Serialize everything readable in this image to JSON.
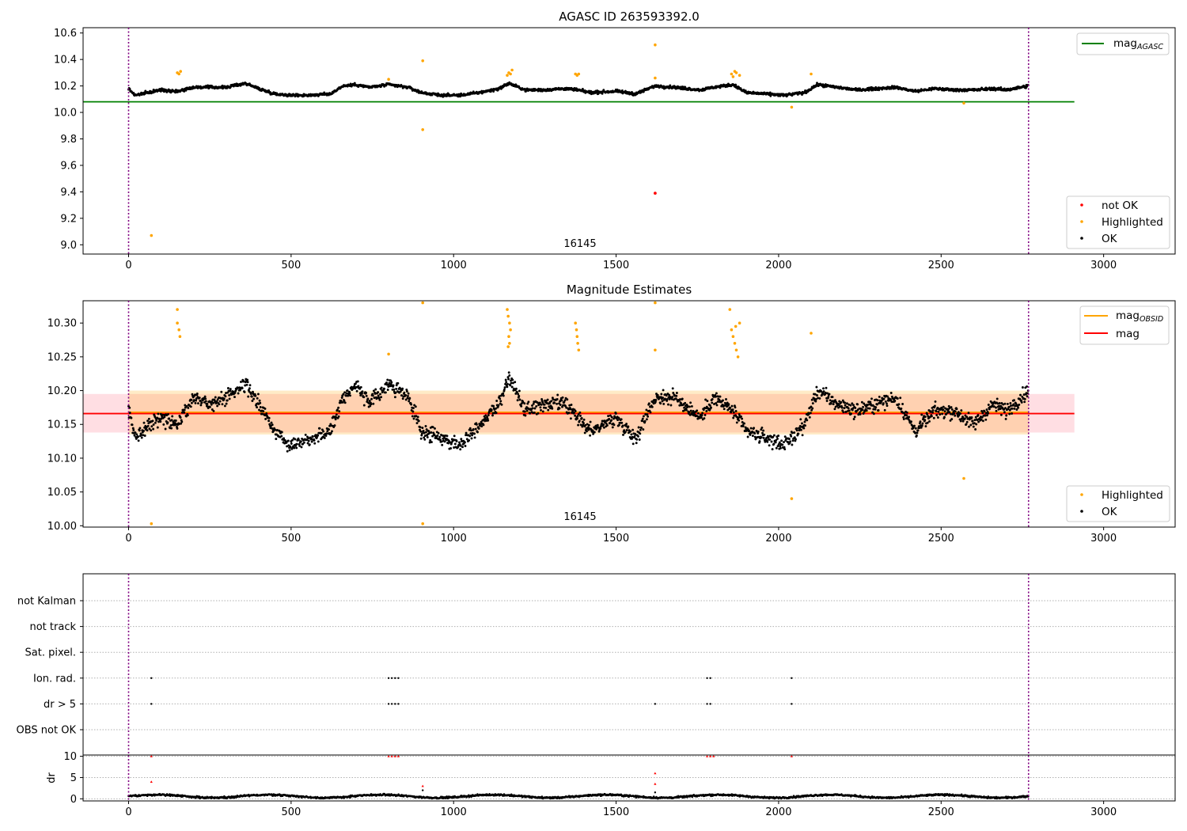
{
  "chart_data": [
    {
      "type": "scatter",
      "title": "AGASC ID 263593392.0",
      "annotation": "16145",
      "xticks": [
        "0",
        "500",
        "1000",
        "1500",
        "2000",
        "2500",
        "3000"
      ],
      "yticks": [
        "9.0",
        "9.2",
        "9.4",
        "9.6",
        "9.8",
        "10.0",
        "10.2",
        "10.4",
        "10.6"
      ],
      "xlim": [
        -140,
        3220
      ],
      "ylim": [
        8.93,
        10.64
      ],
      "vlines": [
        0,
        2769
      ],
      "hlines": [
        {
          "name": "mag_AGASC",
          "y": 10.08,
          "x": [
            -140,
            2910
          ],
          "color": "#008000"
        }
      ],
      "legend_lines": [
        {
          "label": "mag",
          "sub": "AGASC",
          "color": "#008000"
        }
      ],
      "legend_points": [
        {
          "label": "not OK",
          "color": "#ff0000"
        },
        {
          "label": "Highlighted",
          "color": "#ffa500"
        },
        {
          "label": "OK",
          "color": "#000000"
        }
      ],
      "series_ok": {
        "name": "OK",
        "color": "#000000",
        "x_range": [
          0,
          2769
        ],
        "segments": [
          [
            0,
            10.18
          ],
          [
            20,
            10.13
          ],
          [
            60,
            10.15
          ],
          [
            100,
            10.17
          ],
          [
            150,
            10.16
          ],
          [
            200,
            10.19
          ],
          [
            260,
            10.19
          ],
          [
            300,
            10.19
          ],
          [
            360,
            10.22
          ],
          [
            400,
            10.18
          ],
          [
            450,
            10.14
          ],
          [
            500,
            10.13
          ],
          [
            560,
            10.13
          ],
          [
            620,
            10.14
          ],
          [
            660,
            10.2
          ],
          [
            700,
            10.21
          ],
          [
            740,
            10.19
          ],
          [
            800,
            10.21
          ],
          [
            860,
            10.19
          ],
          [
            900,
            10.15
          ],
          [
            960,
            10.13
          ],
          [
            1020,
            10.13
          ],
          [
            1080,
            10.15
          ],
          [
            1140,
            10.18
          ],
          [
            1170,
            10.22
          ],
          [
            1220,
            10.17
          ],
          [
            1280,
            10.17
          ],
          [
            1340,
            10.18
          ],
          [
            1380,
            10.17
          ],
          [
            1420,
            10.15
          ],
          [
            1500,
            10.16
          ],
          [
            1560,
            10.14
          ],
          [
            1620,
            10.2
          ],
          [
            1680,
            10.19
          ],
          [
            1760,
            10.17
          ],
          [
            1800,
            10.19
          ],
          [
            1860,
            10.21
          ],
          [
            1900,
            10.15
          ],
          [
            1960,
            10.14
          ],
          [
            2020,
            10.13
          ],
          [
            2080,
            10.15
          ],
          [
            2120,
            10.21
          ],
          [
            2180,
            10.19
          ],
          [
            2240,
            10.17
          ],
          [
            2300,
            10.18
          ],
          [
            2360,
            10.19
          ],
          [
            2420,
            10.16
          ],
          [
            2480,
            10.18
          ],
          [
            2540,
            10.17
          ],
          [
            2600,
            10.17
          ],
          [
            2660,
            10.18
          ],
          [
            2700,
            10.17
          ],
          [
            2769,
            10.2
          ]
        ]
      },
      "series_highlighted": {
        "name": "Highlighted",
        "color": "#ffa500",
        "points": [
          [
            70,
            9.07
          ],
          [
            150,
            10.3
          ],
          [
            155,
            10.29
          ],
          [
            160,
            10.31
          ],
          [
            800,
            10.25
          ],
          [
            905,
            10.39
          ],
          [
            905,
            9.87
          ],
          [
            1170,
            10.3
          ],
          [
            1175,
            10.29
          ],
          [
            1180,
            10.32
          ],
          [
            1165,
            10.28
          ],
          [
            1375,
            10.29
          ],
          [
            1380,
            10.28
          ],
          [
            1385,
            10.29
          ],
          [
            1620,
            10.51
          ],
          [
            1620,
            10.26
          ],
          [
            1855,
            10.29
          ],
          [
            1860,
            10.27
          ],
          [
            1870,
            10.3
          ],
          [
            1880,
            10.28
          ],
          [
            1865,
            10.31
          ],
          [
            2040,
            10.04
          ],
          [
            2100,
            10.29
          ],
          [
            2570,
            10.07
          ]
        ]
      },
      "series_not_ok": {
        "name": "not OK",
        "color": "#ff0000",
        "points": [
          [
            1620,
            9.39
          ]
        ]
      }
    },
    {
      "type": "scatter",
      "title": "Magnitude Estimates",
      "annotation": "16145",
      "xticks": [
        "0",
        "500",
        "1000",
        "1500",
        "2000",
        "2500",
        "3000"
      ],
      "yticks": [
        "10.00",
        "10.05",
        "10.10",
        "10.15",
        "10.20",
        "10.25",
        "10.30"
      ],
      "xlim": [
        -140,
        3220
      ],
      "ylim": [
        9.998,
        10.333
      ],
      "vlines": [
        0,
        2769
      ],
      "bands": [
        {
          "y": [
            10.138,
            10.195
          ],
          "x": [
            -140,
            2910
          ],
          "color": "#ffb6c1",
          "opacity": 0.45
        },
        {
          "y": [
            10.135,
            10.2
          ],
          "x": [
            0,
            2769
          ],
          "color": "#ffa500",
          "opacity": 0.22
        }
      ],
      "hlines": [
        {
          "name": "mag_OBSID",
          "y": 10.168,
          "x": [
            0,
            2769
          ],
          "color": "#ffa500"
        },
        {
          "name": "mag",
          "y": 10.166,
          "x": [
            -140,
            2910
          ],
          "color": "#ff0000"
        }
      ],
      "legend_lines": [
        {
          "label": "mag",
          "sub": "OBSID",
          "color": "#ffa500"
        },
        {
          "label": "mag",
          "sub": "",
          "color": "#ff0000"
        }
      ],
      "legend_points": [
        {
          "label": "Highlighted",
          "color": "#ffa500"
        },
        {
          "label": "OK",
          "color": "#000000"
        }
      ],
      "series_ok": {
        "name": "OK",
        "color": "#000000",
        "x_range": [
          0,
          2769
        ],
        "segments": [
          [
            0,
            10.17
          ],
          [
            20,
            10.13
          ],
          [
            60,
            10.15
          ],
          [
            100,
            10.16
          ],
          [
            150,
            10.15
          ],
          [
            200,
            10.19
          ],
          [
            260,
            10.18
          ],
          [
            300,
            10.19
          ],
          [
            360,
            10.21
          ],
          [
            400,
            10.18
          ],
          [
            450,
            10.14
          ],
          [
            500,
            10.12
          ],
          [
            560,
            10.13
          ],
          [
            620,
            10.14
          ],
          [
            660,
            10.19
          ],
          [
            700,
            10.21
          ],
          [
            740,
            10.18
          ],
          [
            800,
            10.21
          ],
          [
            860,
            10.19
          ],
          [
            900,
            10.14
          ],
          [
            960,
            10.13
          ],
          [
            1020,
            10.12
          ],
          [
            1080,
            10.15
          ],
          [
            1140,
            10.18
          ],
          [
            1170,
            10.22
          ],
          [
            1220,
            10.17
          ],
          [
            1280,
            10.18
          ],
          [
            1340,
            10.18
          ],
          [
            1380,
            10.16
          ],
          [
            1420,
            10.14
          ],
          [
            1500,
            10.16
          ],
          [
            1560,
            10.13
          ],
          [
            1620,
            10.19
          ],
          [
            1680,
            10.19
          ],
          [
            1760,
            10.16
          ],
          [
            1800,
            10.19
          ],
          [
            1860,
            10.17
          ],
          [
            1900,
            10.14
          ],
          [
            1960,
            10.13
          ],
          [
            2020,
            10.12
          ],
          [
            2080,
            10.15
          ],
          [
            2120,
            10.2
          ],
          [
            2180,
            10.18
          ],
          [
            2240,
            10.17
          ],
          [
            2300,
            10.18
          ],
          [
            2360,
            10.19
          ],
          [
            2420,
            10.14
          ],
          [
            2480,
            10.17
          ],
          [
            2540,
            10.17
          ],
          [
            2600,
            10.15
          ],
          [
            2660,
            10.18
          ],
          [
            2700,
            10.17
          ],
          [
            2769,
            10.2
          ]
        ]
      },
      "series_highlighted": {
        "name": "Highlighted",
        "color": "#ffa500",
        "points": [
          [
            70,
            10.003
          ],
          [
            150,
            10.32
          ],
          [
            150,
            10.3
          ],
          [
            155,
            10.29
          ],
          [
            158,
            10.28
          ],
          [
            800,
            10.254
          ],
          [
            905,
            10.33
          ],
          [
            905,
            10.003
          ],
          [
            1165,
            10.32
          ],
          [
            1168,
            10.31
          ],
          [
            1172,
            10.3
          ],
          [
            1175,
            10.29
          ],
          [
            1170,
            10.28
          ],
          [
            1172,
            10.27
          ],
          [
            1168,
            10.265
          ],
          [
            1375,
            10.3
          ],
          [
            1378,
            10.29
          ],
          [
            1380,
            10.28
          ],
          [
            1382,
            10.27
          ],
          [
            1385,
            10.26
          ],
          [
            1620,
            10.33
          ],
          [
            1620,
            10.26
          ],
          [
            1850,
            10.32
          ],
          [
            1855,
            10.29
          ],
          [
            1860,
            10.28
          ],
          [
            1865,
            10.27
          ],
          [
            1870,
            10.26
          ],
          [
            1875,
            10.25
          ],
          [
            1880,
            10.3
          ],
          [
            1868,
            10.295
          ],
          [
            2100,
            10.285
          ],
          [
            2040,
            10.04
          ],
          [
            2570,
            10.07
          ]
        ]
      }
    },
    {
      "type": "scatter",
      "title": "",
      "xticks": [
        "0",
        "500",
        "1000",
        "1500",
        "2000",
        "2500",
        "3000"
      ],
      "flag_labels": [
        "not Kalman",
        "not track",
        "Sat. pixel.",
        "Ion. rad.",
        "dr > 5",
        "OBS not OK"
      ],
      "flag_points": [
        {
          "flag": "Ion. rad.",
          "x": [
            70,
            800,
            810,
            820,
            830,
            1780,
            1790,
            2040
          ]
        },
        {
          "flag": "dr > 5",
          "x": [
            70,
            800,
            810,
            820,
            830,
            1620,
            1780,
            1790,
            2040
          ]
        }
      ],
      "dr_ylabel": "dr",
      "dr_yticks": [
        "0",
        "5",
        "10"
      ],
      "dr_ylim": [
        -0.5,
        10.3
      ],
      "dr_red_points": [
        [
          70,
          10
        ],
        [
          70,
          4
        ],
        [
          800,
          10
        ],
        [
          810,
          10
        ],
        [
          820,
          10
        ],
        [
          830,
          10
        ],
        [
          905,
          3
        ],
        [
          1620,
          6
        ],
        [
          1620,
          3.5
        ],
        [
          1780,
          10
        ],
        [
          1790,
          10
        ],
        [
          1800,
          10
        ],
        [
          2040,
          10
        ]
      ],
      "dr_black_points": [
        [
          905,
          2
        ],
        [
          1620,
          1.5
        ]
      ],
      "dr_baseline": {
        "level": 0.6,
        "x_range": [
          0,
          2769
        ]
      }
    }
  ]
}
